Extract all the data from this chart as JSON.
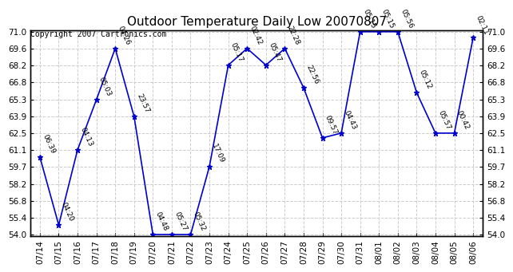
{
  "title": "Outdoor Temperature Daily Low 20070807",
  "copyright": "Copyright 2007 Cartronics.com",
  "dates": [
    "07/14",
    "07/15",
    "07/16",
    "07/17",
    "07/18",
    "07/19",
    "07/20",
    "07/21",
    "07/22",
    "07/23",
    "07/24",
    "07/25",
    "07/26",
    "07/27",
    "07/28",
    "07/29",
    "07/30",
    "07/31",
    "08/01",
    "08/02",
    "08/03",
    "08/04",
    "08/05",
    "08/06"
  ],
  "values": [
    60.5,
    54.8,
    61.1,
    65.3,
    69.6,
    63.9,
    54.0,
    54.0,
    54.0,
    59.7,
    68.2,
    69.6,
    68.2,
    69.6,
    66.3,
    62.1,
    62.5,
    71.0,
    71.0,
    71.0,
    65.9,
    62.5,
    62.5,
    70.5
  ],
  "labels": [
    "06:39",
    "04:20",
    "04:13",
    "05:03",
    "04:26",
    "23:57",
    "04:48",
    "05:27",
    "05:32",
    "17:09",
    "05:17",
    "02:42",
    "05:47",
    "22:28",
    "22:56",
    "09:57",
    "04:43",
    "05:15",
    "05:15",
    "05:56",
    "05:12",
    "05:57",
    "00:42",
    "02:11"
  ],
  "ylim": [
    54.0,
    71.0
  ],
  "yticks": [
    54.0,
    55.4,
    56.8,
    58.2,
    59.7,
    61.1,
    62.5,
    63.9,
    65.3,
    66.8,
    68.2,
    69.6,
    71.0
  ],
  "line_color": "#0000cc",
  "marker_color": "#0000cc",
  "background_color": "#ffffff",
  "grid_color": "#cccccc",
  "title_fontsize": 11,
  "label_fontsize": 6.5,
  "copyright_fontsize": 7,
  "tick_fontsize": 7.5
}
